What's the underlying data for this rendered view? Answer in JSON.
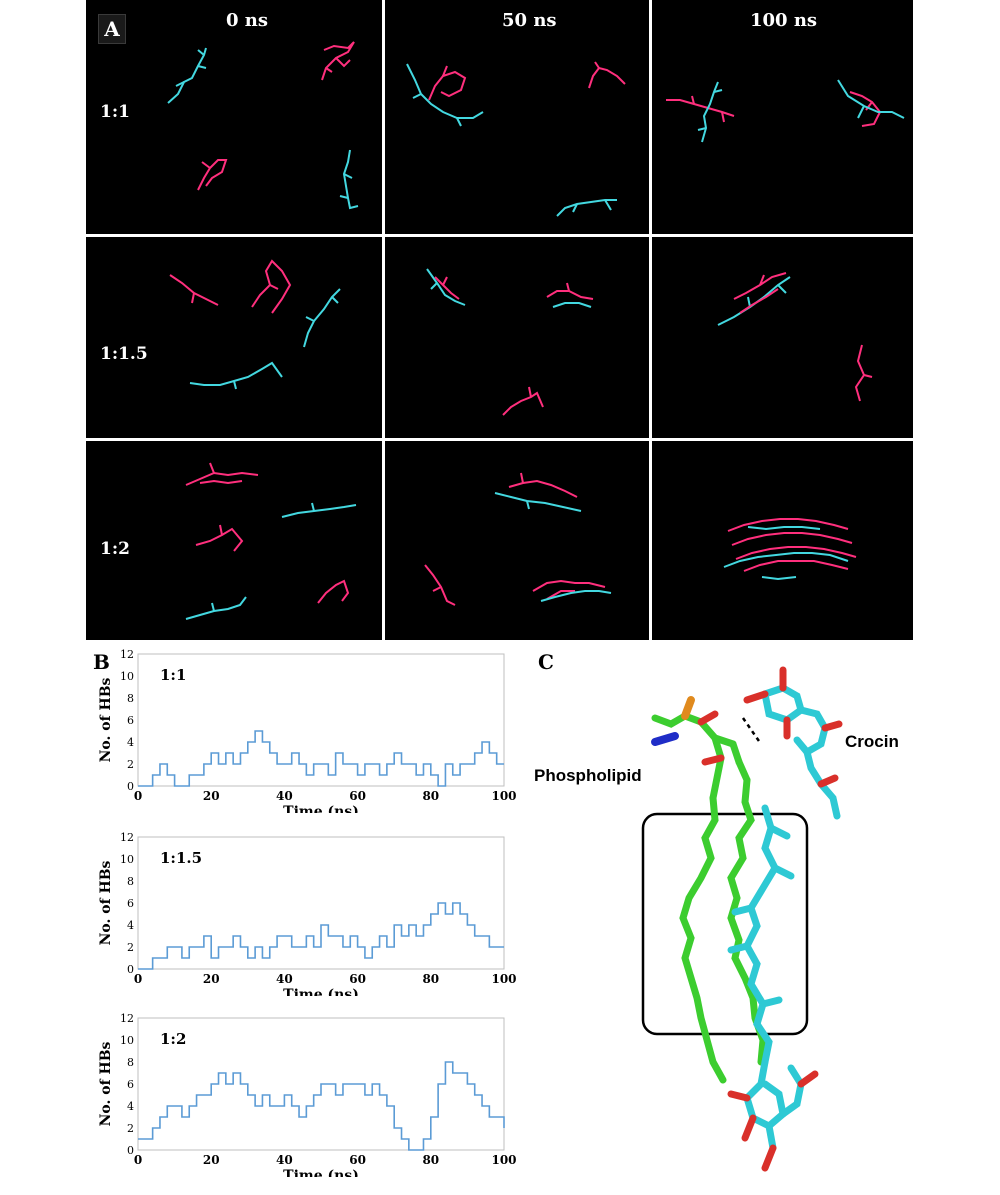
{
  "panel_a": {
    "letter": "A",
    "time_labels": [
      "0 ns",
      "50 ns",
      "100 ns"
    ],
    "ratio_labels": [
      "1:1",
      "1:1.5",
      "1:2"
    ],
    "colors": {
      "background": "#000000",
      "crocin": "#ff2f7d",
      "phospholipid": "#43d8e0"
    }
  },
  "panel_b": {
    "letter": "B",
    "color": "#5b9bd5"
  },
  "panel_c": {
    "letter": "C",
    "phospholipid_label": "Phospholipid",
    "crocin_label": "Crocin",
    "colors": {
      "phospholipid": "#3ccd2f",
      "crocin": "#2ec9d4",
      "oxygen": "#d9302a",
      "phosphorus": "#e08a1e",
      "nitrogen": "#1f2dc7"
    }
  },
  "chart_data": [
    {
      "type": "line",
      "title": "1:1",
      "xlabel": "Time (ns)",
      "ylabel": "No. of HBs",
      "xlim": [
        0,
        100
      ],
      "ylim": [
        0,
        12
      ],
      "x_ticks": [
        0,
        20,
        40,
        60,
        80,
        100
      ],
      "y_ticks": [
        0,
        2,
        4,
        6,
        8,
        10,
        12
      ],
      "x": [
        0,
        2,
        4,
        6,
        8,
        10,
        12,
        14,
        16,
        18,
        20,
        22,
        24,
        26,
        28,
        30,
        32,
        34,
        36,
        38,
        40,
        42,
        44,
        46,
        48,
        50,
        52,
        54,
        56,
        58,
        60,
        62,
        64,
        66,
        68,
        70,
        72,
        74,
        76,
        78,
        80,
        82,
        84,
        86,
        88,
        90,
        92,
        94,
        96,
        98,
        100
      ],
      "series": [
        {
          "values": [
            0,
            0,
            1,
            2,
            1,
            0,
            0,
            1,
            1,
            2,
            3,
            2,
            3,
            2,
            3,
            4,
            5,
            4,
            3,
            2,
            2,
            3,
            2,
            1,
            2,
            2,
            1,
            3,
            2,
            2,
            1,
            2,
            2,
            1,
            2,
            3,
            2,
            2,
            1,
            2,
            1,
            0,
            2,
            1,
            2,
            2,
            3,
            4,
            3,
            2,
            2
          ]
        }
      ]
    },
    {
      "type": "line",
      "title": "1:1.5",
      "xlabel": "Time (ns)",
      "ylabel": "No. of HBs",
      "xlim": [
        0,
        100
      ],
      "ylim": [
        0,
        12
      ],
      "x_ticks": [
        0,
        20,
        40,
        60,
        80,
        100
      ],
      "y_ticks": [
        0,
        2,
        4,
        6,
        8,
        10,
        12
      ],
      "x": [
        0,
        2,
        4,
        6,
        8,
        10,
        12,
        14,
        16,
        18,
        20,
        22,
        24,
        26,
        28,
        30,
        32,
        34,
        36,
        38,
        40,
        42,
        44,
        46,
        48,
        50,
        52,
        54,
        56,
        58,
        60,
        62,
        64,
        66,
        68,
        70,
        72,
        74,
        76,
        78,
        80,
        82,
        84,
        86,
        88,
        90,
        92,
        94,
        96,
        98,
        100
      ],
      "series": [
        {
          "values": [
            0,
            0,
            1,
            1,
            2,
            2,
            1,
            2,
            2,
            3,
            1,
            2,
            2,
            3,
            2,
            1,
            2,
            1,
            2,
            3,
            3,
            2,
            2,
            3,
            2,
            4,
            3,
            3,
            2,
            3,
            2,
            1,
            2,
            3,
            2,
            4,
            3,
            4,
            3,
            4,
            5,
            6,
            5,
            6,
            5,
            4,
            3,
            3,
            2,
            2,
            2
          ]
        }
      ]
    },
    {
      "type": "line",
      "title": "1:2",
      "xlabel": "Time (ns)",
      "ylabel": "No. of HBs",
      "xlim": [
        0,
        100
      ],
      "ylim": [
        0,
        12
      ],
      "x_ticks": [
        0,
        20,
        40,
        60,
        80,
        100
      ],
      "y_ticks": [
        0,
        2,
        4,
        6,
        8,
        10,
        12
      ],
      "x": [
        0,
        2,
        4,
        6,
        8,
        10,
        12,
        14,
        16,
        18,
        20,
        22,
        24,
        26,
        28,
        30,
        32,
        34,
        36,
        38,
        40,
        42,
        44,
        46,
        48,
        50,
        52,
        54,
        56,
        58,
        60,
        62,
        64,
        66,
        68,
        70,
        72,
        74,
        76,
        78,
        80,
        82,
        84,
        86,
        88,
        90,
        92,
        94,
        96,
        98,
        100
      ],
      "series": [
        {
          "values": [
            1,
            1,
            2,
            3,
            4,
            4,
            3,
            4,
            5,
            5,
            6,
            7,
            6,
            7,
            6,
            5,
            4,
            5,
            4,
            4,
            5,
            4,
            3,
            4,
            5,
            6,
            6,
            5,
            6,
            6,
            6,
            5,
            6,
            5,
            4,
            2,
            1,
            0,
            0,
            1,
            3,
            6,
            8,
            7,
            7,
            6,
            5,
            4,
            3,
            3,
            2
          ]
        }
      ]
    }
  ]
}
